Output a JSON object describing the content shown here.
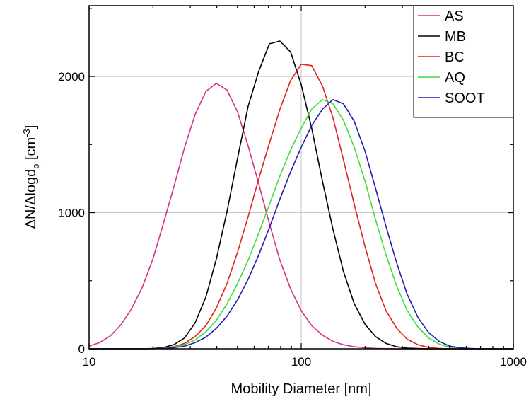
{
  "chart_data": {
    "type": "line",
    "title": "",
    "xlabel": "Mobility Diameter [nm]",
    "ylabel": {
      "main": "ΔN/ΔlogdP [cm−3]",
      "parts": [
        "ΔN/Δlogd",
        "p",
        " [cm",
        "-3",
        "]"
      ]
    },
    "xscale": "log",
    "xlim": [
      10,
      1000
    ],
    "ylim": [
      0,
      2520
    ],
    "xticks": [
      10,
      100,
      1000
    ],
    "xtick_labels": [
      "10",
      "100",
      "1000"
    ],
    "yticks": [
      0,
      1000,
      2000
    ],
    "ytick_labels": [
      "0",
      "1000",
      "2000"
    ],
    "grid": true,
    "legend_position": "top-right",
    "series": [
      {
        "name": "AS",
        "color": "#d62f8c",
        "x": [
          10,
          11.2,
          12.6,
          14.1,
          15.8,
          17.8,
          20,
          22.4,
          25.1,
          28.2,
          31.6,
          35.5,
          39.8,
          44.7,
          50.1,
          56.2,
          63.1,
          70.8,
          79.4,
          89.1,
          100,
          112,
          126,
          141,
          158,
          178,
          200,
          224,
          251,
          282,
          316,
          355,
          398,
          447,
          501,
          562,
          631,
          708,
          794,
          891,
          1000
        ],
        "values": [
          20,
          45,
          95,
          175,
          290,
          450,
          660,
          920,
          1190,
          1480,
          1720,
          1890,
          1950,
          1900,
          1740,
          1490,
          1210,
          920,
          650,
          440,
          280,
          170,
          100,
          55,
          30,
          15,
          8,
          3,
          1,
          0,
          0,
          0,
          0,
          0,
          0,
          0,
          0,
          0,
          0,
          0,
          0
        ]
      },
      {
        "name": "MB",
        "color": "#000000",
        "x": [
          10,
          11.2,
          12.6,
          14.1,
          15.8,
          17.8,
          20,
          22.4,
          25.1,
          28.2,
          31.6,
          35.5,
          39.8,
          44.7,
          50.1,
          56.2,
          63.1,
          70.8,
          79.4,
          89.1,
          100,
          112,
          126,
          141,
          158,
          178,
          200,
          224,
          251,
          282,
          316,
          355,
          398,
          447,
          501,
          562,
          631,
          708,
          794,
          891,
          1000
        ],
        "values": [
          0,
          0,
          0,
          0,
          0,
          0,
          2,
          10,
          30,
          80,
          190,
          380,
          660,
          1010,
          1400,
          1780,
          2040,
          2240,
          2260,
          2180,
          1940,
          1620,
          1230,
          880,
          570,
          330,
          180,
          90,
          40,
          15,
          5,
          2,
          0,
          0,
          0,
          0,
          0,
          0,
          0,
          0,
          0
        ]
      },
      {
        "name": "BC",
        "color": "#e0231c",
        "x": [
          10,
          11.2,
          12.6,
          14.1,
          15.8,
          17.8,
          20,
          22.4,
          25.1,
          28.2,
          31.6,
          35.5,
          39.8,
          44.7,
          50.1,
          56.2,
          63.1,
          70.8,
          79.4,
          89.1,
          100,
          112,
          126,
          141,
          158,
          178,
          200,
          224,
          251,
          282,
          316,
          355,
          398,
          447,
          501,
          562,
          631,
          708,
          794,
          891,
          1000
        ],
        "values": [
          0,
          0,
          0,
          0,
          0,
          0,
          1,
          5,
          15,
          40,
          90,
          170,
          300,
          480,
          710,
          970,
          1250,
          1510,
          1760,
          1970,
          2090,
          2080,
          1930,
          1700,
          1390,
          1060,
          750,
          480,
          280,
          150,
          70,
          30,
          10,
          3,
          0,
          0,
          0,
          0,
          0,
          0,
          0
        ]
      },
      {
        "name": "AQ",
        "color": "#3fdc3b",
        "x": [
          10,
          11.2,
          12.6,
          14.1,
          15.8,
          17.8,
          20,
          22.4,
          25.1,
          28.2,
          31.6,
          35.5,
          39.8,
          44.7,
          50.1,
          56.2,
          63.1,
          70.8,
          79.4,
          89.1,
          100,
          112,
          126,
          141,
          158,
          178,
          200,
          224,
          251,
          282,
          316,
          355,
          398,
          447,
          501,
          562,
          631,
          708,
          794,
          891,
          1000
        ],
        "values": [
          0,
          0,
          0,
          0,
          0,
          0,
          1,
          4,
          12,
          30,
          65,
          125,
          210,
          330,
          480,
          650,
          850,
          1060,
          1270,
          1460,
          1620,
          1760,
          1830,
          1800,
          1680,
          1480,
          1230,
          950,
          690,
          460,
          280,
          160,
          80,
          35,
          12,
          4,
          1,
          0,
          0,
          0,
          0
        ]
      },
      {
        "name": "SOOT",
        "color": "#1f1fb4",
        "x": [
          10,
          11.2,
          12.6,
          14.1,
          15.8,
          17.8,
          20,
          22.4,
          25.1,
          28.2,
          31.6,
          35.5,
          39.8,
          44.7,
          50.1,
          56.2,
          63.1,
          70.8,
          79.4,
          89.1,
          100,
          112,
          126,
          141,
          158,
          178,
          200,
          224,
          251,
          282,
          316,
          355,
          398,
          447,
          501,
          562,
          631,
          708,
          794,
          891,
          1000
        ],
        "values": [
          0,
          0,
          0,
          0,
          0,
          0,
          1,
          3,
          8,
          20,
          45,
          85,
          150,
          240,
          360,
          510,
          690,
          890,
          1100,
          1300,
          1480,
          1640,
          1760,
          1830,
          1800,
          1670,
          1450,
          1180,
          900,
          630,
          400,
          230,
          120,
          55,
          20,
          7,
          2,
          0,
          0,
          0,
          0
        ]
      }
    ]
  }
}
